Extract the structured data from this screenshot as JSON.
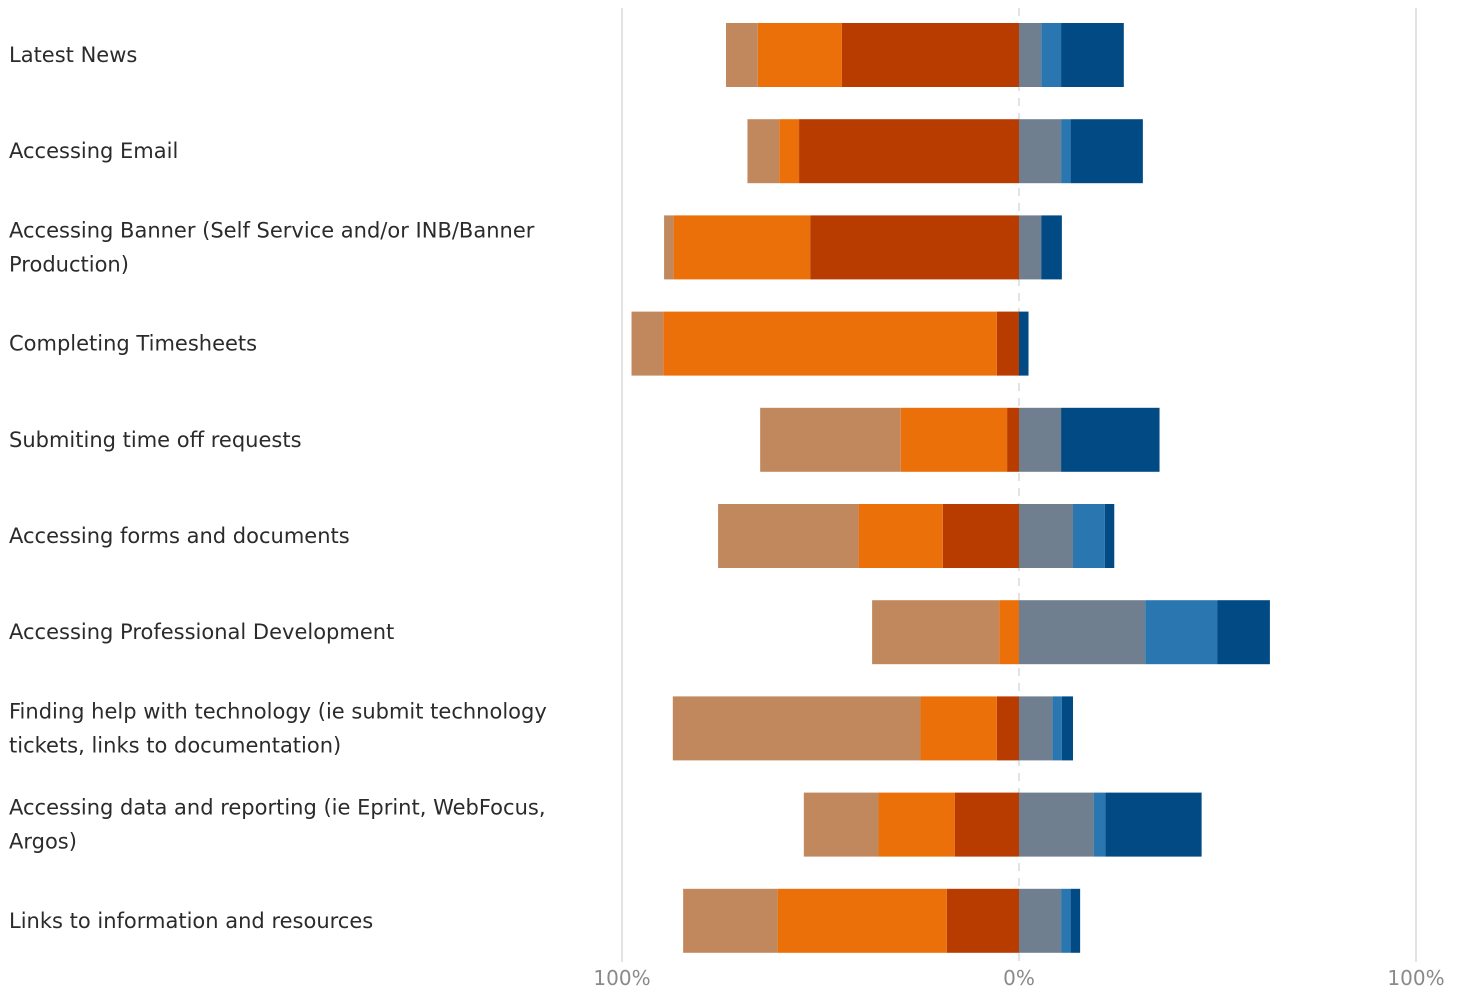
{
  "chart_data": {
    "type": "bar",
    "orientation": "horizontal",
    "stacked": "diverging",
    "categories": [
      [
        "Latest News"
      ],
      [
        "Accessing Email"
      ],
      [
        "Accessing Banner (Self Service and/or INB/Banner",
        "Production)"
      ],
      [
        "Completing Timesheets"
      ],
      [
        "Submiting time off requests"
      ],
      [
        "Accessing forms and documents"
      ],
      [
        "Accessing Professional Development"
      ],
      [
        "Finding help with technology (ie submit technology",
        "tickets, links to documentation)"
      ],
      [
        "Accessing data and reporting (ie Eprint, WebFocus,",
        "Argos)"
      ],
      [
        "Links to information and resources"
      ]
    ],
    "series": [
      {
        "side": "negative",
        "color": "#b83b00",
        "values": [
          44.6,
          55.4,
          52.6,
          5.6,
          3.0,
          19.2,
          0,
          5.6,
          16.2,
          18.2
        ]
      },
      {
        "side": "negative",
        "color": "#eb7009",
        "values": [
          21.2,
          5.0,
          34.4,
          84.0,
          26.8,
          21.2,
          5.0,
          19.2,
          19.2,
          42.6
        ]
      },
      {
        "side": "negative",
        "color": "#c2885d",
        "values": [
          8.0,
          8.0,
          2.4,
          8.0,
          35.4,
          35.4,
          32.0,
          62.4,
          18.8,
          23.8
        ]
      },
      {
        "side": "positive",
        "color": "#707f8f",
        "values": [
          5.6,
          10.6,
          5.6,
          0,
          10.6,
          13.6,
          31.8,
          8.4,
          18.8,
          10.6
        ]
      },
      {
        "side": "positive",
        "color": "#2a76b0",
        "values": [
          5.0,
          2.4,
          0,
          0,
          0,
          8.0,
          18.2,
          2.4,
          3.0,
          2.4
        ]
      },
      {
        "side": "positive",
        "color": "#014a84",
        "values": [
          15.8,
          18.2,
          5.2,
          2.4,
          24.8,
          2.4,
          13.2,
          2.8,
          24.2,
          2.4
        ]
      }
    ],
    "xlim": [
      -100,
      100
    ],
    "ticks": [
      {
        "value": -100,
        "label": "100%"
      },
      {
        "value": 0,
        "label": "0%"
      },
      {
        "value": 100,
        "label": "100%"
      }
    ],
    "grid": true,
    "legend": "none"
  }
}
